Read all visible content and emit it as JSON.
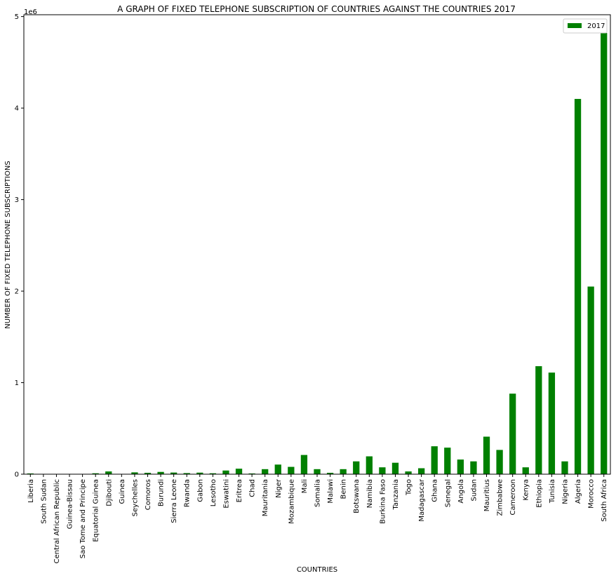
{
  "chart_data": {
    "type": "bar",
    "title": "A GRAPH OF FIXED TELEPHONE SUBSCRIPTION OF COUNTRIES AGAINST THE COUNTRIES 2017",
    "xlabel": "COUNTRIES",
    "ylabel": "NUMBER OF FIXED TELEPHONE SUBSCRIPTIONS",
    "y_offset_text": "1e6",
    "ylim": [
      0,
      5020000
    ],
    "yticks": [
      0,
      1000000,
      2000000,
      3000000,
      4000000,
      5000000
    ],
    "ytick_labels": [
      "0",
      "1",
      "2",
      "3",
      "4",
      "5"
    ],
    "legend_position": "top-right",
    "grid": false,
    "bar_color": "#008000",
    "categories": [
      "Liberia",
      "South Sudan",
      "Central African Republic",
      "Guinea-Bissau",
      "Sao Tome and Principe",
      "Equatorial Guinea",
      "Djibouti",
      "Guinea",
      "Seychelles",
      "Comoros",
      "Burundi",
      "Sierra Leone",
      "Rwanda",
      "Gabon",
      "Lesotho",
      "Eswatini",
      "Eritrea",
      "Chad",
      "Mauritania",
      "Niger",
      "Mozambique",
      "Mali",
      "Somalia",
      "Malawi",
      "Benin",
      "Botswana",
      "Namibia",
      "Burkina Faso",
      "Tanzania",
      "Togo",
      "Madagascar",
      "Ghana",
      "Senegal",
      "Angola",
      "Sudan",
      "Mauritius",
      "Zimbabwe",
      "Cameroon",
      "Kenya",
      "Ethiopia",
      "Tunisia",
      "Nigeria",
      "Algeria",
      "Morocco",
      "South Africa"
    ],
    "series": [
      {
        "name": "2017",
        "values": [
          8000,
          1000,
          500,
          1000,
          3000,
          10000,
          30000,
          2000,
          20000,
          15000,
          25000,
          18000,
          12000,
          17000,
          10000,
          40000,
          60000,
          8000,
          55000,
          105000,
          80000,
          210000,
          55000,
          15000,
          55000,
          140000,
          195000,
          75000,
          125000,
          30000,
          65000,
          305000,
          290000,
          160000,
          140000,
          410000,
          265000,
          880000,
          75000,
          1180000,
          1110000,
          140000,
          4100000,
          2050000,
          4820000
        ]
      }
    ]
  }
}
